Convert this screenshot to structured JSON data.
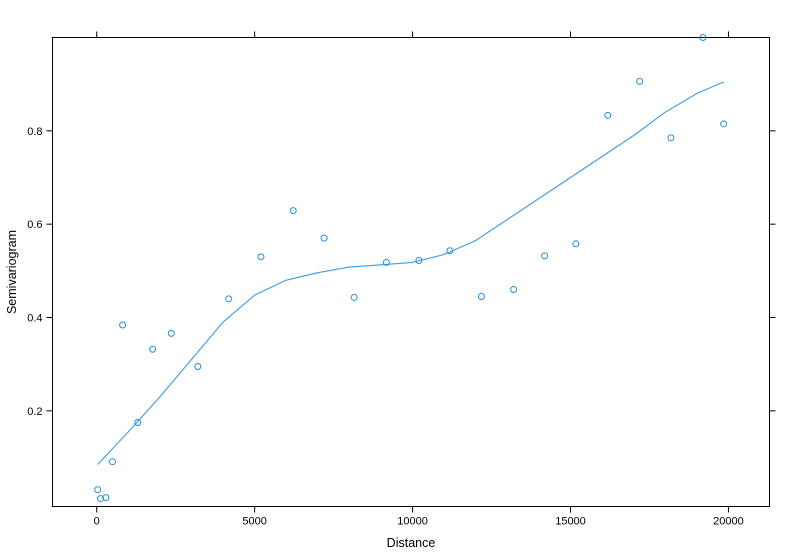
{
  "chart_data": {
    "type": "scatter",
    "xlabel": "Distance",
    "ylabel": "Semivariogram",
    "xlim": [
      -1400,
      21300
    ],
    "ylim": [
      -0.005,
      1.0
    ],
    "x_ticks": [
      0,
      5000,
      10000,
      15000,
      20000
    ],
    "y_ticks": [
      0.2,
      0.4,
      0.6,
      0.8
    ],
    "grid": false,
    "legend": "none",
    "colors": {
      "points": "#1f8fe0",
      "line": "#3f9be6"
    },
    "points": [
      {
        "x": 30,
        "y": 0.031
      },
      {
        "x": 120,
        "y": 0.012
      },
      {
        "x": 290,
        "y": 0.014
      },
      {
        "x": 500,
        "y": 0.091
      },
      {
        "x": 820,
        "y": 0.384
      },
      {
        "x": 1300,
        "y": 0.175
      },
      {
        "x": 1770,
        "y": 0.332
      },
      {
        "x": 2360,
        "y": 0.366
      },
      {
        "x": 3200,
        "y": 0.295
      },
      {
        "x": 4180,
        "y": 0.44
      },
      {
        "x": 5200,
        "y": 0.53
      },
      {
        "x": 6220,
        "y": 0.629
      },
      {
        "x": 7200,
        "y": 0.57
      },
      {
        "x": 8150,
        "y": 0.443
      },
      {
        "x": 9170,
        "y": 0.518
      },
      {
        "x": 10200,
        "y": 0.522
      },
      {
        "x": 11180,
        "y": 0.543
      },
      {
        "x": 12180,
        "y": 0.445
      },
      {
        "x": 13200,
        "y": 0.46
      },
      {
        "x": 14180,
        "y": 0.532
      },
      {
        "x": 15170,
        "y": 0.558
      },
      {
        "x": 16180,
        "y": 0.833
      },
      {
        "x": 17190,
        "y": 0.906
      },
      {
        "x": 18180,
        "y": 0.785
      },
      {
        "x": 19190,
        "y": 1.0
      },
      {
        "x": 19850,
        "y": 0.815
      }
    ],
    "smooth_line": {
      "x": [
        30,
        1000,
        2000,
        3000,
        4000,
        5000,
        6000,
        7000,
        8000,
        9000,
        10000,
        11000,
        12000,
        13000,
        14000,
        15000,
        16000,
        17000,
        18000,
        19000,
        19850
      ],
      "y": [
        0.085,
        0.155,
        0.23,
        0.31,
        0.39,
        0.448,
        0.48,
        0.496,
        0.508,
        0.513,
        0.518,
        0.535,
        0.565,
        0.61,
        0.655,
        0.7,
        0.745,
        0.79,
        0.84,
        0.88,
        0.905
      ]
    }
  }
}
